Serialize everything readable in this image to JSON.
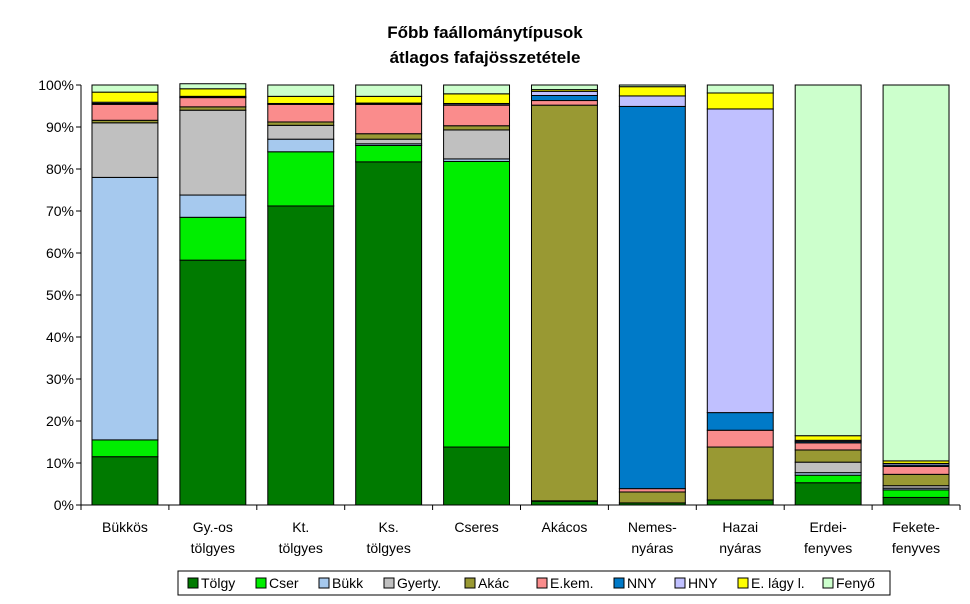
{
  "chart_data": {
    "type": "bar",
    "stacked": true,
    "percent": true,
    "title_lines": [
      "Főbb faállománytípusok",
      "átlagos fafajösszetétele"
    ],
    "ylim": [
      0,
      100
    ],
    "yticks": [
      "0%",
      "10%",
      "20%",
      "30%",
      "40%",
      "50%",
      "60%",
      "70%",
      "80%",
      "90%",
      "100%"
    ],
    "grid": false,
    "legend_position": "bottom",
    "categories": [
      [
        "Bükkös"
      ],
      [
        "Gy.-os",
        "tölgyes"
      ],
      [
        "Kt.",
        "tölgyes"
      ],
      [
        "Ks.",
        "tölgyes"
      ],
      [
        "Cseres"
      ],
      [
        "Akácos"
      ],
      [
        "Nemes-",
        "nyáras"
      ],
      [
        "Hazai",
        "nyáras"
      ],
      [
        "Erdei-",
        "fenyves"
      ],
      [
        "Fekete-",
        "fenyves"
      ]
    ],
    "series": [
      {
        "name": "Tölgy",
        "color": "#007a00",
        "values": [
          11.5,
          58.3,
          71.2,
          81.7,
          13.8,
          0.9,
          0.5,
          1.2,
          5.3,
          1.8
        ]
      },
      {
        "name": "Cser",
        "color": "#00ee00",
        "values": [
          4.0,
          10.2,
          12.9,
          3.9,
          68.0,
          0.1,
          0.0,
          0.0,
          1.8,
          1.8
        ]
      },
      {
        "name": "Bükk",
        "color": "#a6c9ee",
        "values": [
          62.5,
          5.3,
          3.0,
          0.4,
          0.6,
          0.0,
          0.0,
          0.0,
          0.6,
          0.4
        ]
      },
      {
        "name": "Gyerty.",
        "color": "#c0c0c0",
        "values": [
          13.0,
          20.2,
          3.3,
          1.1,
          6.9,
          0.0,
          0.0,
          0.0,
          2.5,
          0.6
        ]
      },
      {
        "name": "Akác",
        "color": "#999933",
        "values": [
          0.6,
          0.8,
          0.8,
          1.3,
          1.0,
          94.2,
          2.6,
          12.6,
          2.9,
          2.7
        ]
      },
      {
        "name": "E.kem.",
        "color": "#fa8c8c",
        "values": [
          3.8,
          2.2,
          4.2,
          7.0,
          4.9,
          1.1,
          0.8,
          4.0,
          1.7,
          1.9
        ]
      },
      {
        "name": "NNY",
        "color": "#007ac8",
        "values": [
          0.2,
          0.1,
          0.1,
          0.1,
          0.1,
          1.2,
          91.0,
          4.2,
          0.3,
          0.3
        ]
      },
      {
        "name": "HNY",
        "color": "#c0c0ff",
        "values": [
          0.3,
          0.2,
          0.1,
          0.2,
          0.3,
          1.0,
          2.5,
          72.3,
          0.3,
          0.4
        ]
      },
      {
        "name": "E. lágy l.",
        "color": "#ffff00",
        "values": [
          2.4,
          1.8,
          1.7,
          1.6,
          2.3,
          0.4,
          2.2,
          3.8,
          1.1,
          0.6
        ]
      },
      {
        "name": "Fenyő",
        "color": "#ccffcc",
        "values": [
          1.7,
          1.2,
          2.7,
          2.7,
          2.1,
          1.1,
          0.4,
          1.9,
          83.5,
          89.5
        ]
      }
    ]
  }
}
